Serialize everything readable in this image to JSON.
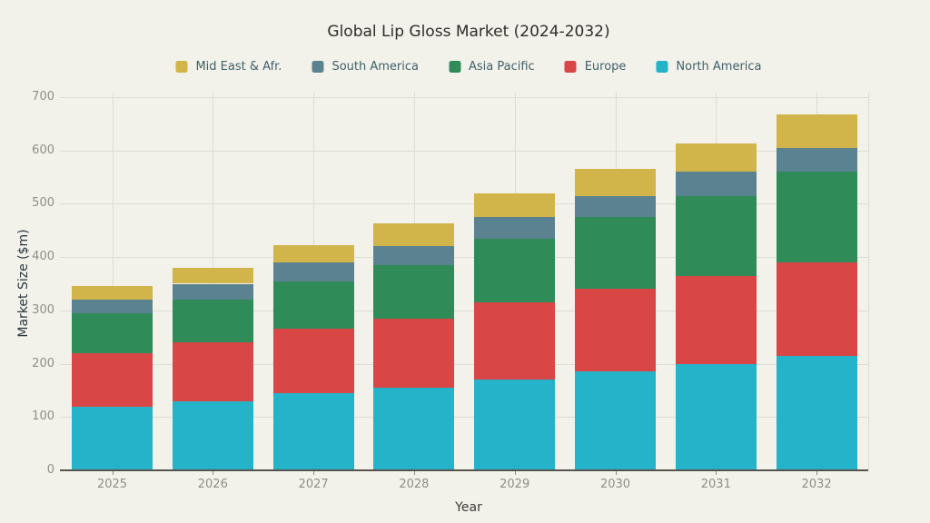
{
  "chart_data": {
    "type": "bar",
    "stacked": true,
    "title": "Global Lip Gloss Market (2024-2032)",
    "xlabel": "Year",
    "ylabel": "Market Size ($m)",
    "categories": [
      "2025",
      "2026",
      "2027",
      "2028",
      "2029",
      "2030",
      "2031",
      "2032"
    ],
    "series": [
      {
        "name": "North America",
        "color": "#24b3c9",
        "values": [
          120,
          130,
          145,
          155,
          170,
          185,
          200,
          215
        ]
      },
      {
        "name": "Europe",
        "color": "#d94646",
        "values": [
          100,
          110,
          120,
          130,
          145,
          155,
          165,
          175
        ]
      },
      {
        "name": "Asia Pacific",
        "color": "#2f8b57",
        "values": [
          75,
          80,
          90,
          100,
          120,
          135,
          150,
          170
        ]
      },
      {
        "name": "South America",
        "color": "#5b8290",
        "values": [
          25,
          30,
          35,
          35,
          40,
          40,
          45,
          45
        ]
      },
      {
        "name": "Mid East & Afr.",
        "color": "#d1b44a",
        "values": [
          25,
          30,
          32,
          43,
          45,
          50,
          53,
          62
        ]
      }
    ],
    "legend_order": [
      "Mid East & Afr.",
      "South America",
      "Asia Pacific",
      "Europe",
      "North America"
    ],
    "ylim": [
      0,
      700
    ],
    "ytick_step": 100,
    "ytick_labels": [
      "0",
      "100",
      "200",
      "300",
      "400",
      "500",
      "600",
      "700"
    ],
    "grid": true,
    "legend_position": "top-center",
    "colors": {
      "background": "#f2f1ea",
      "gridline": "#deddd4",
      "axis": "#55544e",
      "tick_label": "#8f8e88",
      "title_text": "#2e2d2b",
      "legend_text": "#3f616b",
      "ylabel_text": "#2b3940",
      "xlabel_text": "#3a3a36"
    }
  }
}
